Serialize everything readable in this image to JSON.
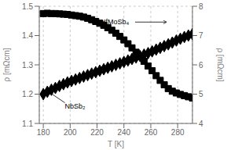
{
  "chart_data": {
    "type": "scatter",
    "xlabel": "T [K]",
    "ylabel": "ρ [mΩcm]",
    "y2label": "ρ [mΩcm]",
    "xlim": [
      177,
      291
    ],
    "ylim": [
      1.1,
      1.5
    ],
    "y2lim": [
      4,
      8
    ],
    "xticks": [
      180,
      200,
      220,
      240,
      260,
      280
    ],
    "yticks": [
      1.1,
      1.2,
      1.3,
      1.4,
      1.5
    ],
    "y2ticks": [
      4,
      5,
      6,
      7,
      8
    ],
    "series": [
      {
        "x": [
          180,
          183,
          186,
          189,
          192,
          195,
          198,
          201,
          204,
          207,
          210,
          213,
          216,
          219,
          222,
          225,
          228,
          231,
          234,
          237,
          240,
          243,
          246,
          249,
          252,
          255,
          258,
          261,
          264,
          267,
          270,
          273,
          276,
          279,
          282,
          285,
          288,
          291
        ],
        "values": [
          1.2,
          1.208,
          1.215,
          1.221,
          1.228,
          1.234,
          1.24,
          1.245,
          1.25,
          1.255,
          1.26,
          1.265,
          1.27,
          1.275,
          1.28,
          1.285,
          1.29,
          1.295,
          1.3,
          1.305,
          1.31,
          1.315,
          1.32,
          1.325,
          1.33,
          1.335,
          1.34,
          1.346,
          1.352,
          1.358,
          1.364,
          1.37,
          1.376,
          1.383,
          1.389,
          1.395,
          1.4,
          1.405
        ],
        "color": "black",
        "marker": "diamond"
      },
      {
        "x": [
          180,
          183,
          186,
          189,
          192,
          195,
          198,
          201,
          204,
          207,
          210,
          213,
          216,
          219,
          222,
          225,
          228,
          231,
          234,
          237,
          240,
          243,
          246,
          249,
          252,
          255,
          258,
          261,
          264,
          267,
          270,
          273,
          276,
          279,
          282,
          285,
          288,
          291
        ],
        "values": [
          7.75,
          7.76,
          7.75,
          7.75,
          7.74,
          7.73,
          7.72,
          7.7,
          7.68,
          7.66,
          7.63,
          7.59,
          7.54,
          7.48,
          7.42,
          7.35,
          7.27,
          7.18,
          7.08,
          6.97,
          6.85,
          6.72,
          6.58,
          6.43,
          6.28,
          6.12,
          5.96,
          5.8,
          5.63,
          5.47,
          5.32,
          5.19,
          5.1,
          5.04,
          4.99,
          4.95,
          4.91,
          4.87
        ],
        "color": "black",
        "marker": "square",
        "axis": "y2"
      }
    ],
    "annotations": [
      "NbSb₂",
      "HfMoSb₄"
    ]
  }
}
